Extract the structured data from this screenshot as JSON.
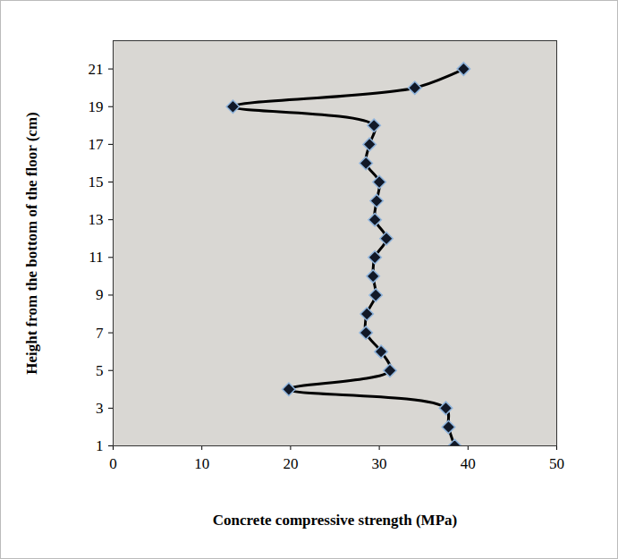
{
  "chart_data": {
    "type": "line",
    "x_label": "Concrete compressive strength (MPa)",
    "y_label": "Height from the bottom of the floor (cm)",
    "series": [
      {
        "color": "#000000",
        "marker": "diamond",
        "x": [
          38.5,
          37.8,
          37.5,
          19.8,
          31.2,
          30.2,
          28.5,
          28.6,
          29.6,
          29.3,
          29.5,
          30.8,
          29.5,
          29.7,
          30.0,
          28.5,
          28.9,
          29.4,
          13.5,
          34.0,
          39.5
        ],
        "y": [
          1,
          2,
          3,
          4,
          5,
          6,
          7,
          8,
          9,
          10,
          11,
          12,
          13,
          14,
          15,
          16,
          17,
          18,
          19,
          20,
          21
        ]
      }
    ],
    "xlim": [
      0,
      50
    ],
    "xticks": [
      0,
      10,
      20,
      30,
      40,
      50
    ],
    "ylim": [
      1,
      22.5
    ],
    "yticks": [
      1,
      3,
      5,
      7,
      9,
      11,
      13,
      15,
      17,
      19,
      21
    ],
    "grid": false
  }
}
